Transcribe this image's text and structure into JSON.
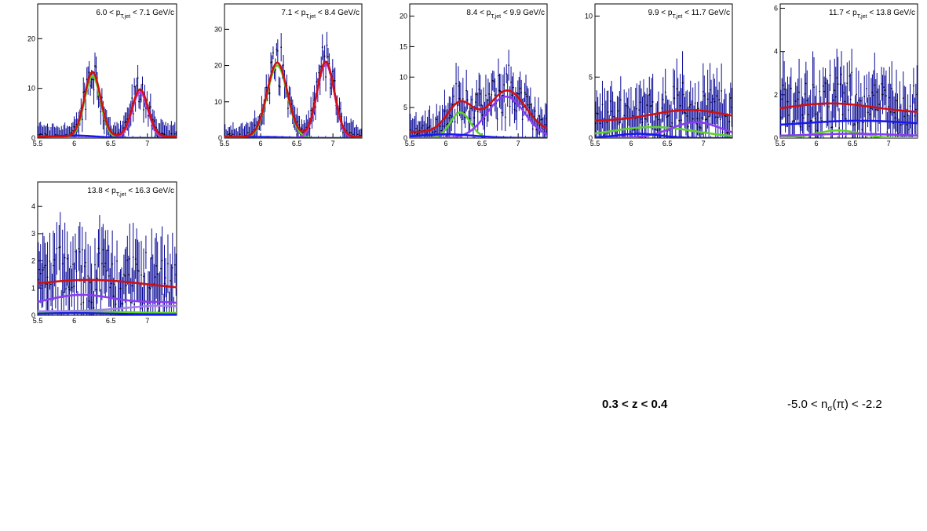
{
  "colors": {
    "data": "#0a0a96",
    "total": "#d01010",
    "blue": "#1a1aee",
    "green": "#5ed22c",
    "purple": "#8a3cf0",
    "magenta": "#c43adf"
  },
  "captions": {
    "z_range": "0.3 < z < 0.4",
    "nsigma_pre": "-5.0 < n",
    "nsigma_sub": "σ",
    "nsigma_post": "(π) < -2.2"
  },
  "chart_data": [
    {
      "type": "line",
      "title": {
        "pre": "6.0 < p",
        "sub": "T,jet",
        "post": " < 7.1 GeV/c"
      },
      "xlim": [
        5.5,
        7.4
      ],
      "ylim": [
        0,
        27
      ],
      "xticks": [
        5.5,
        6,
        6.5,
        7
      ],
      "yticks": [
        0,
        10,
        20
      ],
      "series": [
        {
          "role": "total",
          "color": "#d01010",
          "peaks": [
            [
              13,
              6.25,
              0.11
            ],
            [
              9.5,
              6.9,
              0.11
            ]
          ],
          "offset": 0.3
        },
        {
          "role": "green",
          "color": "#5ed22c",
          "peaks": [
            [
              12.5,
              6.25,
              0.11
            ]
          ],
          "offset": 0
        },
        {
          "role": "purple",
          "color": "#c43adf",
          "peaks": [
            [
              9.2,
              6.9,
              0.11
            ]
          ],
          "offset": 0
        },
        {
          "role": "blue",
          "color": "#1a1aee",
          "peaks": [
            [
              0.5,
              6.0,
              0.3
            ]
          ],
          "offset": 0
        }
      ],
      "points": {
        "n": 120,
        "noise": 0.35,
        "errors": 2.5
      }
    },
    {
      "type": "line",
      "title": {
        "pre": "7.1 < p",
        "sub": "T,jet",
        "post": " < 8.4 GeV/c"
      },
      "xlim": [
        5.5,
        7.4
      ],
      "ylim": [
        0,
        37
      ],
      "xticks": [
        5.5,
        6,
        6.5,
        7
      ],
      "yticks": [
        0,
        10,
        20,
        30
      ],
      "series": [
        {
          "role": "total",
          "color": "#d01010",
          "peaks": [
            [
              20.5,
              6.23,
              0.14
            ],
            [
              20.8,
              6.9,
              0.12
            ]
          ],
          "offset": 0.3
        },
        {
          "role": "green",
          "color": "#5ed22c",
          "peaks": [
            [
              20,
              6.23,
              0.14
            ]
          ],
          "offset": 0
        },
        {
          "role": "purple",
          "color": "#c43adf",
          "peaks": [
            [
              20.5,
              6.9,
              0.12
            ]
          ],
          "offset": 0
        },
        {
          "role": "blue",
          "color": "#1a1aee",
          "peaks": [
            [
              0.3,
              6.0,
              0.3
            ]
          ],
          "offset": 0
        }
      ],
      "points": {
        "n": 120,
        "noise": 0.3,
        "errors": 3.5
      }
    },
    {
      "type": "line",
      "title": {
        "pre": "8.4 < p",
        "sub": "T,jet",
        "post": " < 9.9 GeV/c"
      },
      "xlim": [
        5.5,
        7.4
      ],
      "ylim": [
        0,
        22
      ],
      "xticks": [
        5.5,
        6,
        6.5,
        7
      ],
      "yticks": [
        0,
        5,
        10,
        15,
        20
      ],
      "series": [
        {
          "role": "total",
          "color": "#d01010",
          "peaks": [
            [
              4.8,
              6.2,
              0.18
            ],
            [
              6.8,
              6.85,
              0.25
            ]
          ],
          "offset": 1.0
        },
        {
          "role": "green",
          "color": "#5ed22c",
          "peaks": [
            [
              4.2,
              6.2,
              0.14
            ]
          ],
          "offset": 0
        },
        {
          "role": "purple",
          "color": "#8a3cf0",
          "peaks": [
            [
              6.8,
              6.83,
              0.26
            ]
          ],
          "offset": 0
        },
        {
          "role": "blue",
          "color": "#1a1aee",
          "peaks": [
            [
              0.6,
              6.0,
              0.4
            ]
          ],
          "offset": 0
        }
      ],
      "points": {
        "n": 120,
        "noise": 0.55,
        "errors": 3.0
      }
    },
    {
      "type": "line",
      "title": {
        "pre": "9.9 < p",
        "sub": "T,jet",
        "post": " < 11.7 GeV/c"
      },
      "xlim": [
        5.5,
        7.4
      ],
      "ylim": [
        0,
        11
      ],
      "xticks": [
        5.5,
        6,
        6.5,
        7
      ],
      "yticks": [
        0,
        5,
        10
      ],
      "series": [
        {
          "role": "total",
          "color": "#d01010",
          "peaks": [
            [
              0.9,
              6.8,
              0.5
            ]
          ],
          "offset": 1.4
        },
        {
          "role": "green",
          "color": "#5ed22c",
          "peaks": [
            [
              0.9,
              6.3,
              0.6
            ]
          ],
          "offset": 0
        },
        {
          "role": "purple",
          "color": "#8a3cf0",
          "peaks": [
            [
              1.3,
              6.9,
              0.35
            ]
          ],
          "offset": 0
        },
        {
          "role": "blue",
          "color": "#1a1aee",
          "peaks": [
            [
              0.35,
              6.1,
              0.3
            ]
          ],
          "offset": 0
        }
      ],
      "points": {
        "n": 120,
        "noise": 0.9,
        "errors": 2.2
      }
    },
    {
      "type": "line",
      "title": {
        "pre": "11.7 < p",
        "sub": "T,jet",
        "post": " < 13.8 GeV/c"
      },
      "xlim": [
        5.5,
        7.4
      ],
      "ylim": [
        0,
        6.2
      ],
      "xticks": [
        5.5,
        6,
        6.5,
        7
      ],
      "yticks": [
        0,
        2,
        4,
        6
      ],
      "series": [
        {
          "role": "total",
          "color": "#d01010",
          "peaks": [
            [
              0.45,
              6.2,
              0.6
            ]
          ],
          "offset": 1.15
        },
        {
          "role": "blue",
          "color": "#1a1aee",
          "peaks": [
            [
              0.3,
              6.6,
              0.8
            ]
          ],
          "offset": 0.5
        },
        {
          "role": "green",
          "color": "#5ed22c",
          "peaks": [
            [
              0.35,
              6.3,
              0.3
            ]
          ],
          "offset": 0
        },
        {
          "role": "purple",
          "color": "#8a3cf0",
          "peaks": [
            [
              0.1,
              6.5,
              0.5
            ]
          ],
          "offset": 0.1
        }
      ],
      "points": {
        "n": 120,
        "noise": 0.8,
        "errors": 1.3
      }
    },
    {
      "type": "line",
      "title": {
        "pre": "13.8 < p",
        "sub": "T,jet",
        "post": " < 16.3 GeV/c"
      },
      "xlim": [
        5.5,
        7.4
      ],
      "ylim": [
        0,
        4.9
      ],
      "xticks": [
        5.5,
        6,
        6.5,
        7
      ],
      "yticks": [
        0,
        1,
        2,
        3,
        4
      ],
      "series": [
        {
          "role": "total",
          "color": "#d01010",
          "peaks": [
            [
              0.4,
              6.2,
              0.8
            ]
          ],
          "offset": 0.9
        },
        {
          "role": "purple",
          "color": "#8a3cf0",
          "peaks": [
            [
              0.5,
              6.1,
              0.5
            ],
            [
              0.2,
              7.3,
              0.4
            ]
          ],
          "offset": 0.25
        },
        {
          "role": "lavender",
          "color": "#a87ef0",
          "peaks": [
            [
              0.2,
              7.2,
              0.5
            ]
          ],
          "offset": 0.15
        },
        {
          "role": "green",
          "color": "#5ed22c",
          "peaks": [
            [
              0.05,
              6.3,
              0.5
            ]
          ],
          "offset": 0.08
        },
        {
          "role": "blue",
          "color": "#1a1aee",
          "peaks": [
            [
              0.05,
              6.0,
              0.5
            ]
          ],
          "offset": 0.03
        }
      ],
      "points": {
        "n": 120,
        "noise": 1.0,
        "errors": 1.2
      }
    }
  ]
}
